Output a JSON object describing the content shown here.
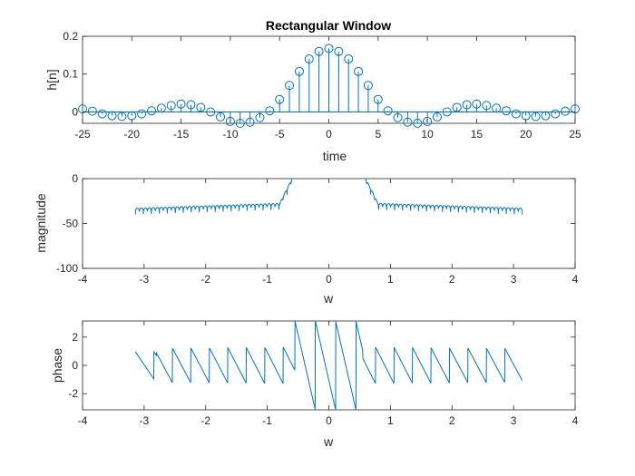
{
  "figure": {
    "background": "#ffffff",
    "series_color": "#0072BD",
    "axis_color": "#262626"
  },
  "chart_data": [
    {
      "type": "stem",
      "title": "Rectangular Window",
      "xlabel": "time",
      "ylabel": "h[n]",
      "xlim": [
        -25,
        25
      ],
      "ylim": [
        -0.03,
        0.2
      ],
      "xticks": [
        -25,
        -20,
        -15,
        -10,
        -5,
        0,
        5,
        10,
        15,
        20,
        25
      ],
      "xtick_labels": [
        "-25",
        "-20",
        "-15",
        "-10",
        "-5",
        "0",
        "5",
        "10",
        "15",
        "20",
        "25"
      ],
      "yticks": [
        0,
        0.1,
        0.2
      ],
      "ytick_labels": [
        "0",
        "0.1",
        "0.2"
      ],
      "grid": false,
      "series": [
        {
          "x": [
            -25,
            -24,
            -23,
            -22,
            -21,
            -20,
            -19,
            -18,
            -17,
            -16,
            -15,
            -14,
            -13,
            -12,
            -11,
            -10,
            -9,
            -8,
            -7,
            -6,
            -5,
            -4,
            -3,
            -2,
            -1,
            0,
            1,
            2,
            3,
            4,
            5,
            6,
            7,
            8,
            9,
            10,
            11,
            12,
            13,
            14,
            15,
            16,
            17,
            18,
            19,
            20,
            21,
            22,
            23,
            24,
            25
          ],
          "y": [
            0.008,
            0.002,
            -0.005,
            -0.01,
            -0.012,
            -0.01,
            -0.005,
            0.003,
            0.01,
            0.017,
            0.021,
            0.019,
            0.012,
            0,
            -0.013,
            -0.025,
            -0.03,
            -0.027,
            -0.015,
            0.003,
            0.033,
            0.07,
            0.107,
            0.14,
            0.16,
            0.168,
            0.16,
            0.14,
            0.107,
            0.07,
            0.033,
            0.003,
            -0.015,
            -0.027,
            -0.03,
            -0.025,
            -0.013,
            0,
            0.012,
            0.019,
            0.021,
            0.017,
            0.01,
            0.003,
            -0.005,
            -0.01,
            -0.012,
            -0.01,
            -0.005,
            0.002,
            0.008
          ]
        }
      ]
    },
    {
      "type": "line",
      "xlabel": "w",
      "ylabel": "magnitude",
      "xlim": [
        -4,
        4
      ],
      "ylim": [
        -100,
        0
      ],
      "xticks": [
        -4,
        -3,
        -2,
        -1,
        0,
        1,
        2,
        3,
        4
      ],
      "xtick_labels": [
        "-4",
        "-3",
        "-2",
        "-1",
        "0",
        "1",
        "2",
        "3",
        "4"
      ],
      "yticks": [
        -100,
        -50,
        0
      ],
      "ytick_labels": [
        "-100",
        "-50",
        "0"
      ],
      "grid": false,
      "x_range": [
        -3.1416,
        3.1416
      ],
      "passband_edge": 0.55,
      "notch_count": 40
    },
    {
      "type": "line",
      "xlabel": "w",
      "ylabel": "phase",
      "xlim": [
        -4,
        4
      ],
      "ylim": [
        -3.14,
        3.14
      ],
      "xticks": [
        -4,
        -3,
        -2,
        -1,
        0,
        1,
        2,
        3,
        4
      ],
      "xtick_labels": [
        "-4",
        "-3",
        "-2",
        "-1",
        "0",
        "1",
        "2",
        "3",
        "4"
      ],
      "yticks": [
        -2,
        0,
        2
      ],
      "ytick_labels": [
        "-2",
        "0",
        "2"
      ],
      "grid": false,
      "x_range": [
        -3.1416,
        3.1416
      ],
      "sawtooth_period": 0.3
    }
  ]
}
